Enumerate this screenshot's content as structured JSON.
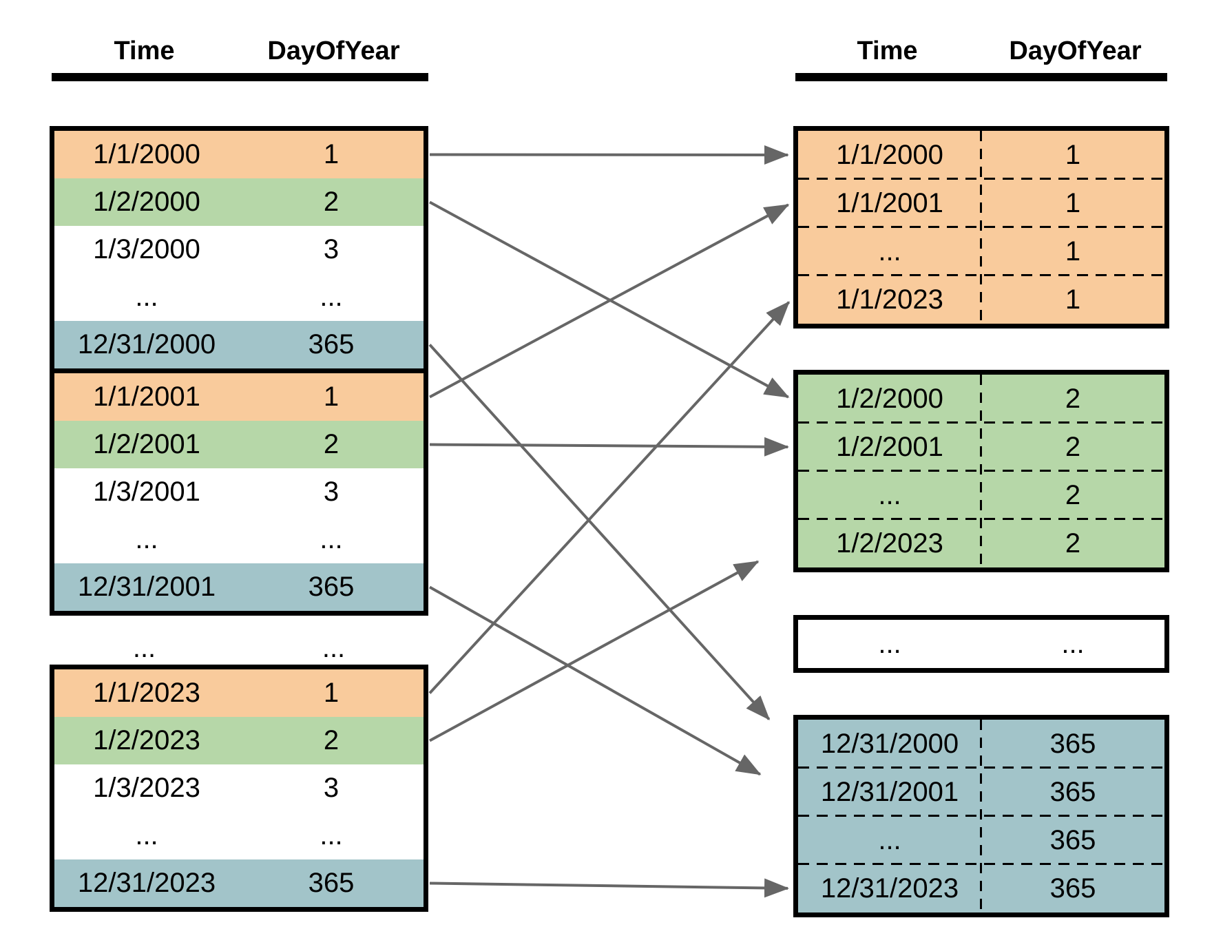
{
  "header_left": {
    "time": "Time",
    "day_of_year": "DayOfYear"
  },
  "header_right": {
    "time": "Time",
    "day_of_year": "DayOfYear"
  },
  "colors": {
    "day1": "#F9CB9C",
    "day2": "#B6D7A8",
    "day365": "#A2C4C9",
    "white": "#FFFFFF",
    "border": "#000000",
    "arrow": "#666666"
  },
  "left_tables": [
    {
      "name": "year-2000",
      "rows": [
        {
          "time": "1/1/2000",
          "day": "1",
          "color": "day1"
        },
        {
          "time": "1/2/2000",
          "day": "2",
          "color": "day2"
        },
        {
          "time": "1/3/2000",
          "day": "3",
          "color": "white"
        },
        {
          "time": "...",
          "day": "...",
          "color": "white"
        },
        {
          "time": "12/31/2000",
          "day": "365",
          "color": "day365"
        }
      ]
    },
    {
      "name": "year-2001",
      "rows": [
        {
          "time": "1/1/2001",
          "day": "1",
          "color": "day1"
        },
        {
          "time": "1/2/2001",
          "day": "2",
          "color": "day2"
        },
        {
          "time": "1/3/2001",
          "day": "3",
          "color": "white"
        },
        {
          "time": "...",
          "day": "...",
          "color": "white"
        },
        {
          "time": "12/31/2001",
          "day": "365",
          "color": "day365"
        }
      ]
    },
    {
      "name": "year-2023",
      "rows": [
        {
          "time": "1/1/2023",
          "day": "1",
          "color": "day1"
        },
        {
          "time": "1/2/2023",
          "day": "2",
          "color": "day2"
        },
        {
          "time": "1/3/2023",
          "day": "3",
          "color": "white"
        },
        {
          "time": "...",
          "day": "...",
          "color": "white"
        },
        {
          "time": "12/31/2023",
          "day": "365",
          "color": "day365"
        }
      ]
    }
  ],
  "between_tables_row": {
    "time": "...",
    "day": "..."
  },
  "right_groups": [
    {
      "name": "group-day-1",
      "color": "day1",
      "rows": [
        [
          "1/1/2000",
          "1"
        ],
        [
          "1/1/2001",
          "1"
        ],
        [
          "...",
          "1"
        ],
        [
          "1/1/2023",
          "1"
        ]
      ]
    },
    {
      "name": "group-day-2",
      "color": "day2",
      "rows": [
        [
          "1/2/2000",
          "2"
        ],
        [
          "1/2/2001",
          "2"
        ],
        [
          "...",
          "2"
        ],
        [
          "1/2/2023",
          "2"
        ]
      ]
    },
    {
      "name": "group-ellipsis",
      "color": "white",
      "rows": [
        [
          "...",
          "..."
        ]
      ]
    },
    {
      "name": "group-day-365",
      "color": "day365",
      "rows": [
        [
          "12/31/2000",
          "365"
        ],
        [
          "12/31/2001",
          "365"
        ],
        [
          "...",
          "365"
        ],
        [
          "12/31/2023",
          "365"
        ]
      ]
    }
  ],
  "arrows": [
    {
      "from": "l2000-r0",
      "to": "g1-r0",
      "trim": 5
    },
    {
      "from": "l2000-r1",
      "to": "g2-r0",
      "trim": 5
    },
    {
      "from": "l2000-r4",
      "to": "g365-r0",
      "trim": 48
    },
    {
      "from": "l2001-r0",
      "to": "g1-r1",
      "trim": 5
    },
    {
      "from": "l2001-r1",
      "to": "g2-r1",
      "trim": 5
    },
    {
      "from": "l2001-r4",
      "to": "g365-r1",
      "trim": 52
    },
    {
      "from": "l2023-r0",
      "to": "g1-r3",
      "trim": 5
    },
    {
      "from": "l2023-r1",
      "to": "g2-r3",
      "trim": 55
    },
    {
      "from": "l2023-r4",
      "to": "g365-r3",
      "trim": 5
    }
  ]
}
